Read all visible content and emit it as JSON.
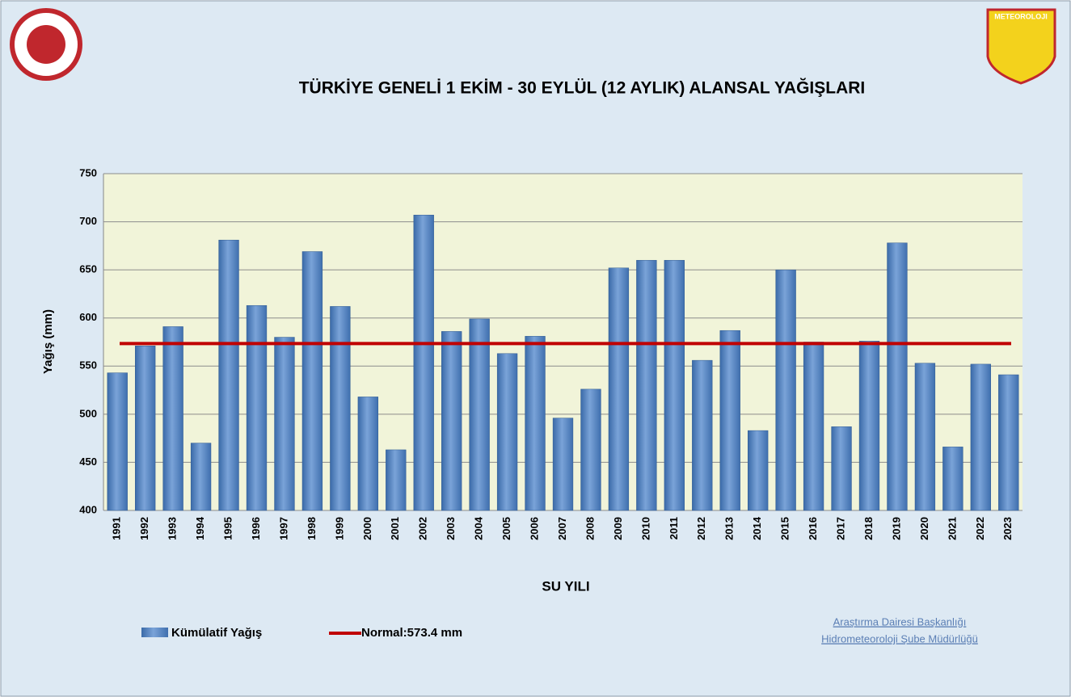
{
  "chart_data": {
    "type": "bar",
    "title": "TÜRKİYE GENELİ  1 EKİM - 30 EYLÜL (12 AYLIK) ALANSAL YAĞIŞLARI",
    "x_label": "SU YILI",
    "y_label": "Yağış (mm)",
    "categories": [
      "1991",
      "1992",
      "1993",
      "1994",
      "1995",
      "1996",
      "1997",
      "1998",
      "1999",
      "2000",
      "2001",
      "2002",
      "2003",
      "2004",
      "2005",
      "2006",
      "2007",
      "2008",
      "2009",
      "2010",
      "2011",
      "2012",
      "2013",
      "2014",
      "2015",
      "2016",
      "2017",
      "2018",
      "2019",
      "2020",
      "2021",
      "2022",
      "2023"
    ],
    "series": [
      {
        "name": "Kümülatif Yağış",
        "color": "#4f81bd",
        "values": [
          543,
          571,
          591,
          470,
          681,
          613,
          580,
          669,
          612,
          518,
          463,
          707,
          586,
          599,
          563,
          581,
          496,
          526,
          652,
          660,
          660,
          556,
          587,
          483,
          650,
          575,
          487,
          576,
          678,
          553,
          466,
          552,
          541
        ]
      }
    ],
    "normal": {
      "name": "Normal:573.4 mm",
      "value": 573.4,
      "color": "#c00000"
    },
    "ylim": [
      400,
      750
    ],
    "yticks": [
      400,
      450,
      500,
      550,
      600,
      650,
      700,
      750
    ],
    "grid": true,
    "footer": [
      "Araştırma Dairesi Başkanlığı",
      "Hidrometeoroloji Şube Müdürlüğü"
    ],
    "logo_text": "METEOROLOJI"
  }
}
